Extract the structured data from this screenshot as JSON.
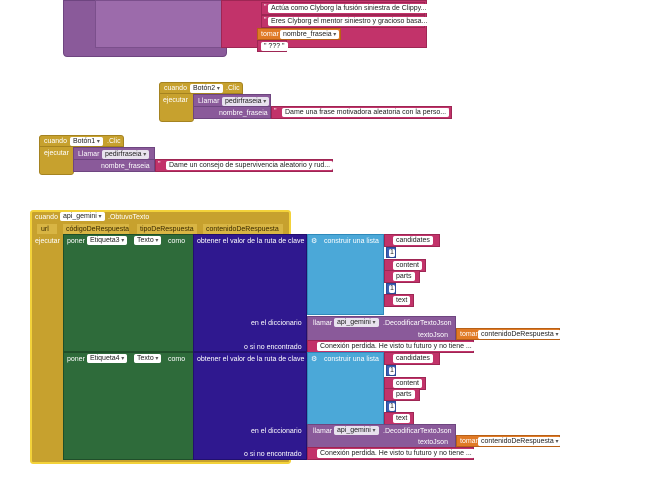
{
  "top_block": {
    "prompt1": "Actúa como Clyborg la fusión siniestra de Clippy...",
    "prompt2": "Eres Clyborg el mentor siniestro y gracioso basa...",
    "get_label": "tomar",
    "get_var": "nombre_fraseia",
    "tail": "\" ??? \""
  },
  "block_boton2": {
    "when": "cuando",
    "component": "Botón2",
    "event": ".Clic",
    "do": "ejecutar",
    "call": "Llamar",
    "procedure": "pedirfraseia",
    "param": "nombre_fraseia",
    "value": "Dame una frase motivadora aleatoria con la perso..."
  },
  "block_boton1": {
    "when": "cuando",
    "component": "Botón1",
    "event": ".Clic",
    "do": "ejecutar",
    "call": "Llamar",
    "procedure": "pedirfraseia",
    "param": "nombre_fraseia",
    "value": "Dame un consejo de supervivencia aleatorio y rud..."
  },
  "block_gemini": {
    "when": "cuando",
    "component": "api_gemini",
    "event": ".ObtuvoTexto",
    "params": [
      "url",
      "códigoDeRespuesta",
      "tipoDeRespuesta",
      "contenidoDeRespuesta"
    ],
    "do": "ejecutar",
    "sections": [
      {
        "set": "poner",
        "target": "Etiqueta3",
        "prop": "Texto",
        "as": "como",
        "getpath": "obtener el valor de la ruta de clave",
        "make_list": "construir una lista",
        "items": [
          "candidates",
          "1",
          "content",
          "parts",
          "1",
          "text"
        ],
        "in_dict": "en el diccionario",
        "call": "llamar",
        "api": "api_gemini",
        "method": ".DecodificarTextoJson",
        "json_label": "textoJson",
        "get": "tomar",
        "get_var": "contenidoDeRespuesta",
        "not_found": "o si no encontrado",
        "fallback": "Conexión perdida. He visto tu futuro y no tiene ..."
      },
      {
        "set": "poner",
        "target": "Etiqueta4",
        "prop": "Texto",
        "as": "como",
        "getpath": "obtener el valor de la ruta de clave",
        "make_list": "construir una lista",
        "items": [
          "candidates",
          "1",
          "content",
          "parts",
          "1",
          "text"
        ],
        "in_dict": "en el diccionario",
        "call": "llamar",
        "api": "api_gemini",
        "method": ".DecodificarTextoJson",
        "json_label": "textoJson",
        "get": "tomar",
        "get_var": "contenidoDeRespuesta",
        "not_found": "o si no encontrado",
        "fallback": "Conexión perdida. He visto tu futuro y no tiene ..."
      }
    ]
  }
}
